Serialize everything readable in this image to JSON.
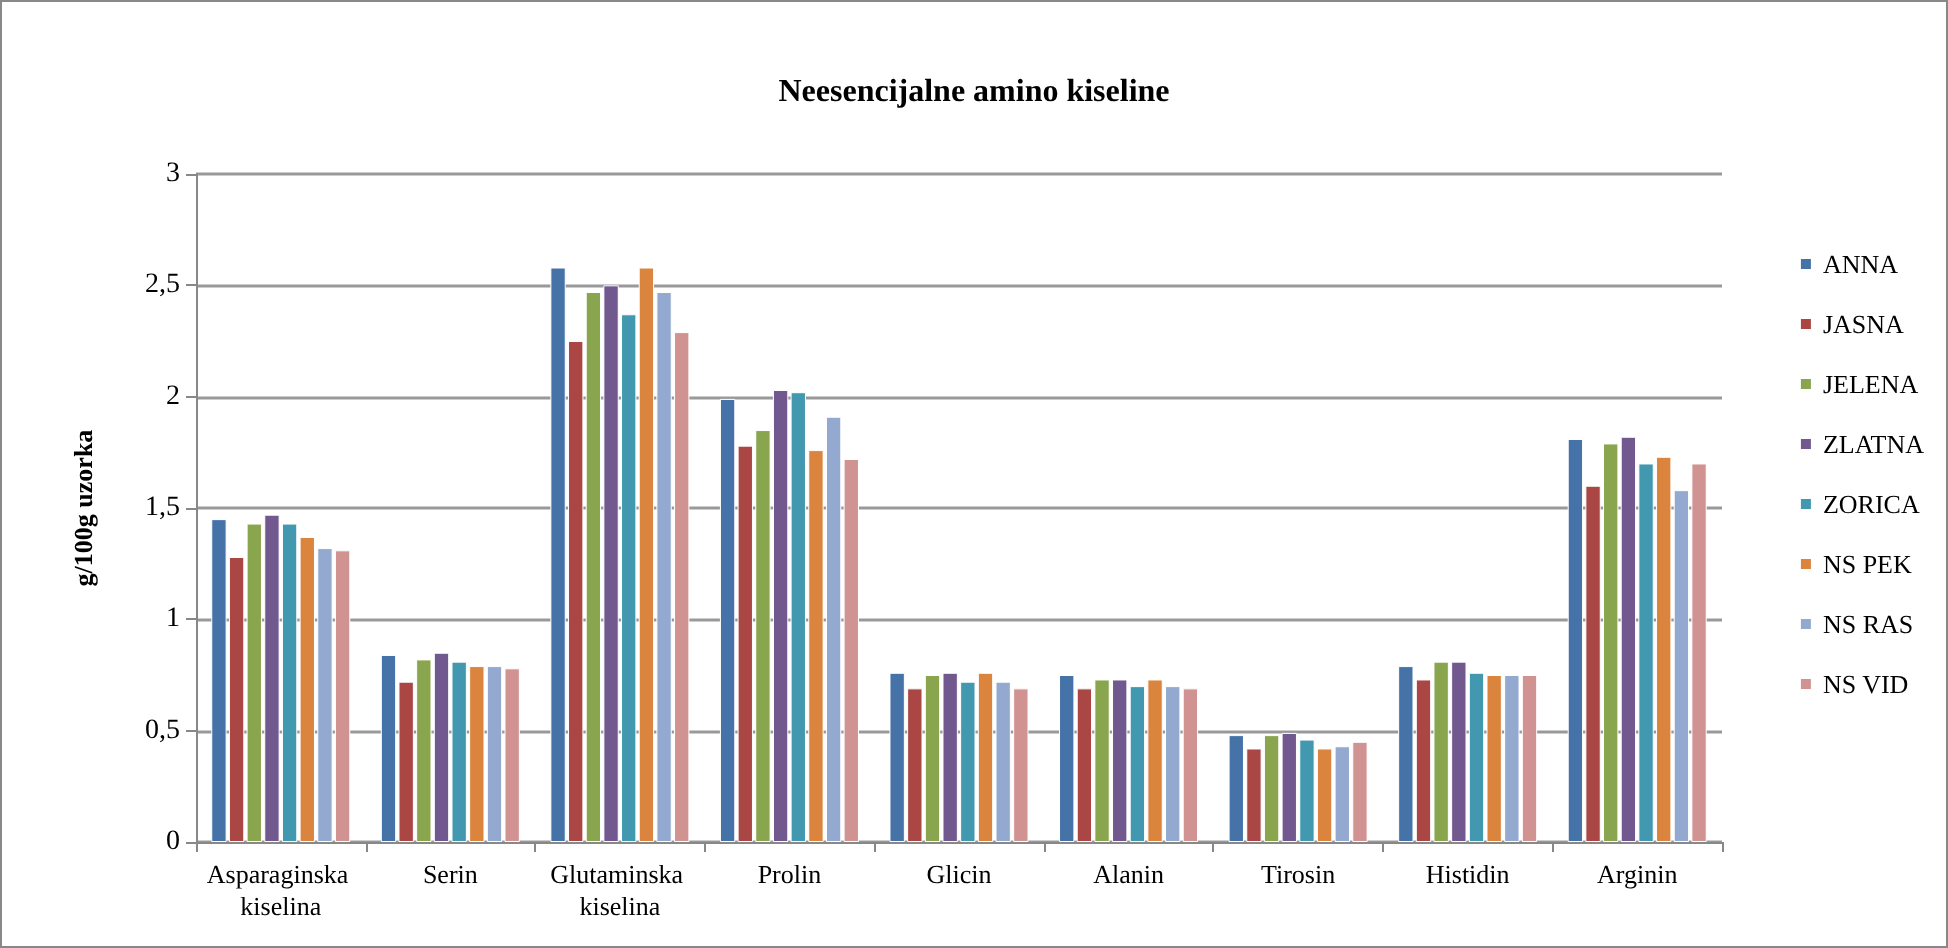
{
  "chart_data": {
    "type": "bar",
    "title": "Neesencijalne amino kiseline",
    "ylabel": "g/100g uzorka",
    "categories": [
      "Asparaginska kiselina",
      "Serin",
      "Glutaminska kiselina",
      "Prolin",
      "Glicin",
      "Alanin",
      "Tirosin",
      "Histidin",
      "Arginin"
    ],
    "series": [
      {
        "name": "ANNA",
        "color": "#4572a7",
        "values": [
          1.45,
          0.84,
          2.58,
          1.99,
          0.76,
          0.75,
          0.48,
          0.79,
          1.81
        ]
      },
      {
        "name": "JASNA",
        "color": "#aa4643",
        "values": [
          1.28,
          0.72,
          2.25,
          1.78,
          0.69,
          0.69,
          0.42,
          0.73,
          1.6
        ]
      },
      {
        "name": "JELENA",
        "color": "#89a54e",
        "values": [
          1.43,
          0.82,
          2.47,
          1.85,
          0.75,
          0.73,
          0.48,
          0.81,
          1.79
        ]
      },
      {
        "name": "ZLATNA",
        "color": "#71588f",
        "values": [
          1.47,
          0.85,
          2.5,
          2.03,
          0.76,
          0.73,
          0.49,
          0.81,
          1.82
        ]
      },
      {
        "name": "ZORICA",
        "color": "#4198af",
        "values": [
          1.43,
          0.81,
          2.37,
          2.02,
          0.72,
          0.7,
          0.46,
          0.76,
          1.7
        ]
      },
      {
        "name": "NS PEK",
        "color": "#db843d",
        "values": [
          1.37,
          0.79,
          2.58,
          1.76,
          0.76,
          0.73,
          0.42,
          0.75,
          1.73
        ]
      },
      {
        "name": "NS RAS",
        "color": "#93a9cf",
        "values": [
          1.32,
          0.79,
          2.47,
          1.91,
          0.72,
          0.7,
          0.43,
          0.75,
          1.58
        ]
      },
      {
        "name": "NS VID",
        "color": "#d19392",
        "values": [
          1.31,
          0.78,
          2.29,
          1.72,
          0.69,
          0.69,
          0.45,
          0.75,
          1.7
        ]
      }
    ],
    "ylim": [
      0,
      3
    ],
    "yticks": [
      0,
      {
        "value": 0.5,
        "label": "0,5"
      },
      1,
      {
        "value": 1.5,
        "label": "1,5"
      },
      2,
      {
        "value": 2.5,
        "label": "2,5"
      },
      3
    ],
    "grid": "y",
    "legend": "right"
  }
}
